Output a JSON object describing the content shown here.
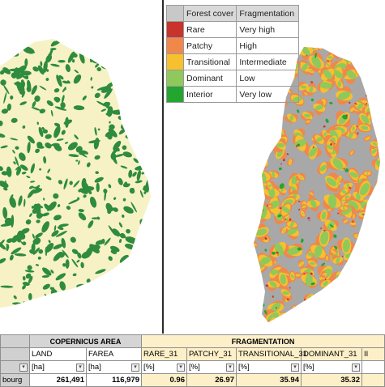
{
  "legend": {
    "header": [
      "Forest cover",
      "Fragmentation"
    ],
    "rows": [
      {
        "cover": "Rare",
        "frag": "Very high",
        "color": "#c8332b"
      },
      {
        "cover": "Patchy",
        "frag": "High",
        "color": "#f0874b"
      },
      {
        "cover": "Transitional",
        "frag": "Intermediate",
        "color": "#f6c02f"
      },
      {
        "cover": "Dominant",
        "frag": "Low",
        "color": "#8fc95b"
      },
      {
        "cover": "Interior",
        "frag": "Very low",
        "color": "#24a52f"
      }
    ],
    "header_color": "#c8c8c8"
  },
  "maps": {
    "left_colors": {
      "forest": "#2f8b3e",
      "nonforest": "#f6f2c6"
    },
    "right_colors": {
      "nonforest": "#a8a8a8"
    }
  },
  "table": {
    "group_headers": {
      "copernicus": "COPERNICUS AREA",
      "fragmentation": "FRAGMENTATION"
    },
    "columns": [
      {
        "name": "LAND",
        "unit": "[ha]",
        "value": "261,491"
      },
      {
        "name": "FAREA",
        "unit": "[ha]",
        "value": "116,979"
      },
      {
        "name": "RARE_31",
        "unit": "[%]",
        "value": "0.96"
      },
      {
        "name": "PATCHY_31",
        "unit": "[%]",
        "value": "26.97"
      },
      {
        "name": "TRANSITIONAL_31",
        "unit": "[%]",
        "value": "35.94"
      },
      {
        "name": "DOMINANT_31",
        "unit": "[%]",
        "value": "35.32"
      },
      {
        "name": "II",
        "unit": "",
        "value": ""
      }
    ],
    "row_label": "bourg",
    "first_col_header": "",
    "dropdown_glyph": "▾"
  }
}
